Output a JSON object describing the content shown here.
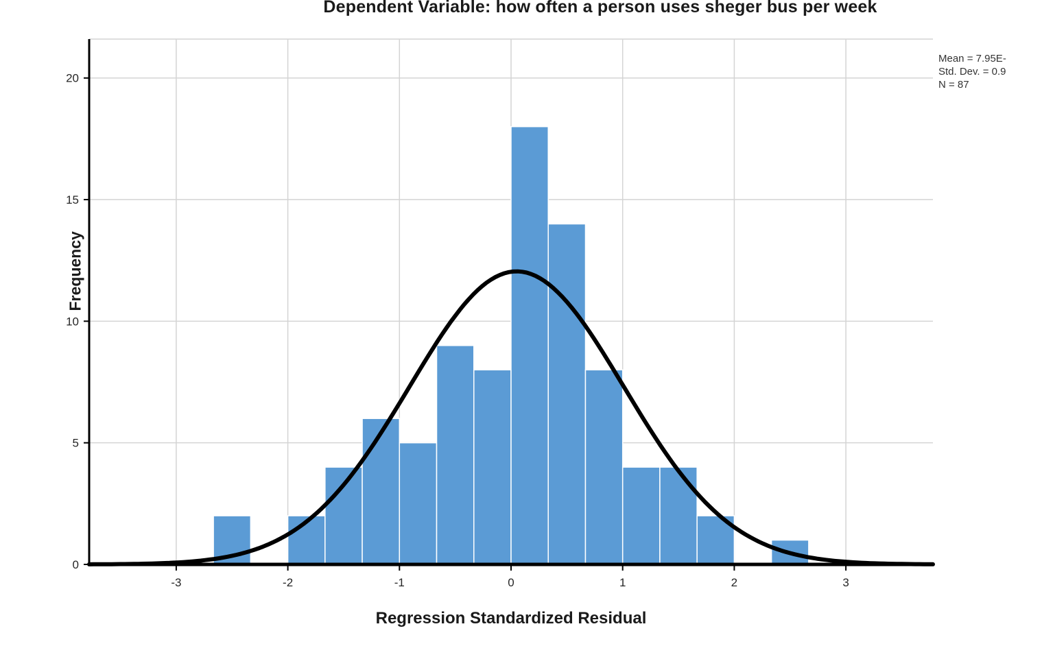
{
  "chart_data": {
    "type": "bar",
    "subtype": "histogram-with-normal-curve",
    "title": "Dependent Variable: how often a person uses sheger bus per week",
    "xlabel": "Regression Standardized Residual",
    "ylabel": "Frequency",
    "x_ticks": [
      -3,
      -2,
      -1,
      0,
      1,
      2,
      3
    ],
    "y_ticks": [
      0,
      5,
      10,
      15,
      20
    ],
    "xlim": [
      -3.78,
      3.78
    ],
    "ylim": [
      0,
      21.6
    ],
    "grid": true,
    "bin_width": 0.3333,
    "bins": [
      {
        "x0": -2.6667,
        "x1": -2.3333,
        "count": 2
      },
      {
        "x0": -2.3333,
        "x1": -2.0,
        "count": 0
      },
      {
        "x0": -2.0,
        "x1": -1.6667,
        "count": 2
      },
      {
        "x0": -1.6667,
        "x1": -1.3333,
        "count": 4
      },
      {
        "x0": -1.3333,
        "x1": -1.0,
        "count": 6
      },
      {
        "x0": -1.0,
        "x1": -0.6667,
        "count": 5
      },
      {
        "x0": -0.6667,
        "x1": -0.3333,
        "count": 9
      },
      {
        "x0": -0.3333,
        "x1": 0.0,
        "count": 8
      },
      {
        "x0": 0.0,
        "x1": 0.3333,
        "count": 18
      },
      {
        "x0": 0.3333,
        "x1": 0.6667,
        "count": 14
      },
      {
        "x0": 0.6667,
        "x1": 1.0,
        "count": 8
      },
      {
        "x0": 1.0,
        "x1": 1.3333,
        "count": 4
      },
      {
        "x0": 1.3333,
        "x1": 1.6667,
        "count": 4
      },
      {
        "x0": 1.6667,
        "x1": 2.0,
        "count": 2
      },
      {
        "x0": 2.0,
        "x1": 2.3333,
        "count": 0
      },
      {
        "x0": 2.3333,
        "x1": 2.6667,
        "count": 1
      }
    ],
    "total_n": 87,
    "normal_curve": {
      "mean": 0.05,
      "sd": 0.96,
      "peak": 12.05
    },
    "stats_lines": {
      "mean": "Mean = 7.95E-",
      "std_dev": "Std. Dev. = 0.9",
      "n": "N = 87"
    },
    "colors": {
      "bar": "#5B9BD5",
      "bar_separator": "#ffffff",
      "curve": "#000000",
      "grid": "#d4d4d4",
      "axis": "#000000",
      "background": "#ffffff"
    }
  }
}
